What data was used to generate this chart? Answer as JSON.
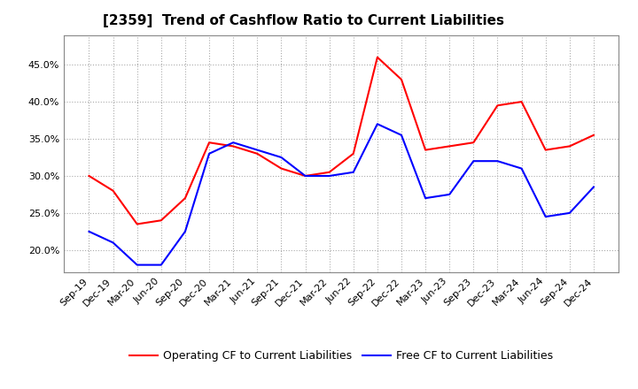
{
  "title": "[2359]  Trend of Cashflow Ratio to Current Liabilities",
  "x_labels": [
    "Sep-19",
    "Dec-19",
    "Mar-20",
    "Jun-20",
    "Sep-20",
    "Dec-20",
    "Mar-21",
    "Jun-21",
    "Sep-21",
    "Dec-21",
    "Mar-22",
    "Jun-22",
    "Sep-22",
    "Dec-22",
    "Mar-23",
    "Jun-23",
    "Sep-23",
    "Dec-23",
    "Mar-24",
    "Jun-24",
    "Sep-24",
    "Dec-24"
  ],
  "operating_cf": [
    30.0,
    28.0,
    23.5,
    24.0,
    27.0,
    34.5,
    34.0,
    33.0,
    31.0,
    30.0,
    30.5,
    33.0,
    46.0,
    43.0,
    33.5,
    34.0,
    34.5,
    39.5,
    40.0,
    33.5,
    34.0,
    35.5
  ],
  "free_cf": [
    22.5,
    21.0,
    18.0,
    18.0,
    22.5,
    33.0,
    34.5,
    33.5,
    32.5,
    30.0,
    30.0,
    30.5,
    37.0,
    35.5,
    27.0,
    27.5,
    32.0,
    32.0,
    31.0,
    24.5,
    25.0,
    28.5
  ],
  "operating_color": "#ff0000",
  "free_color": "#0000ff",
  "ylim_min": 17.0,
  "ylim_max": 49.0,
  "background_color": "#ffffff",
  "grid_color": "#aaaaaa",
  "title_fontsize": 11,
  "tick_fontsize": 8,
  "legend_fontsize": 9
}
